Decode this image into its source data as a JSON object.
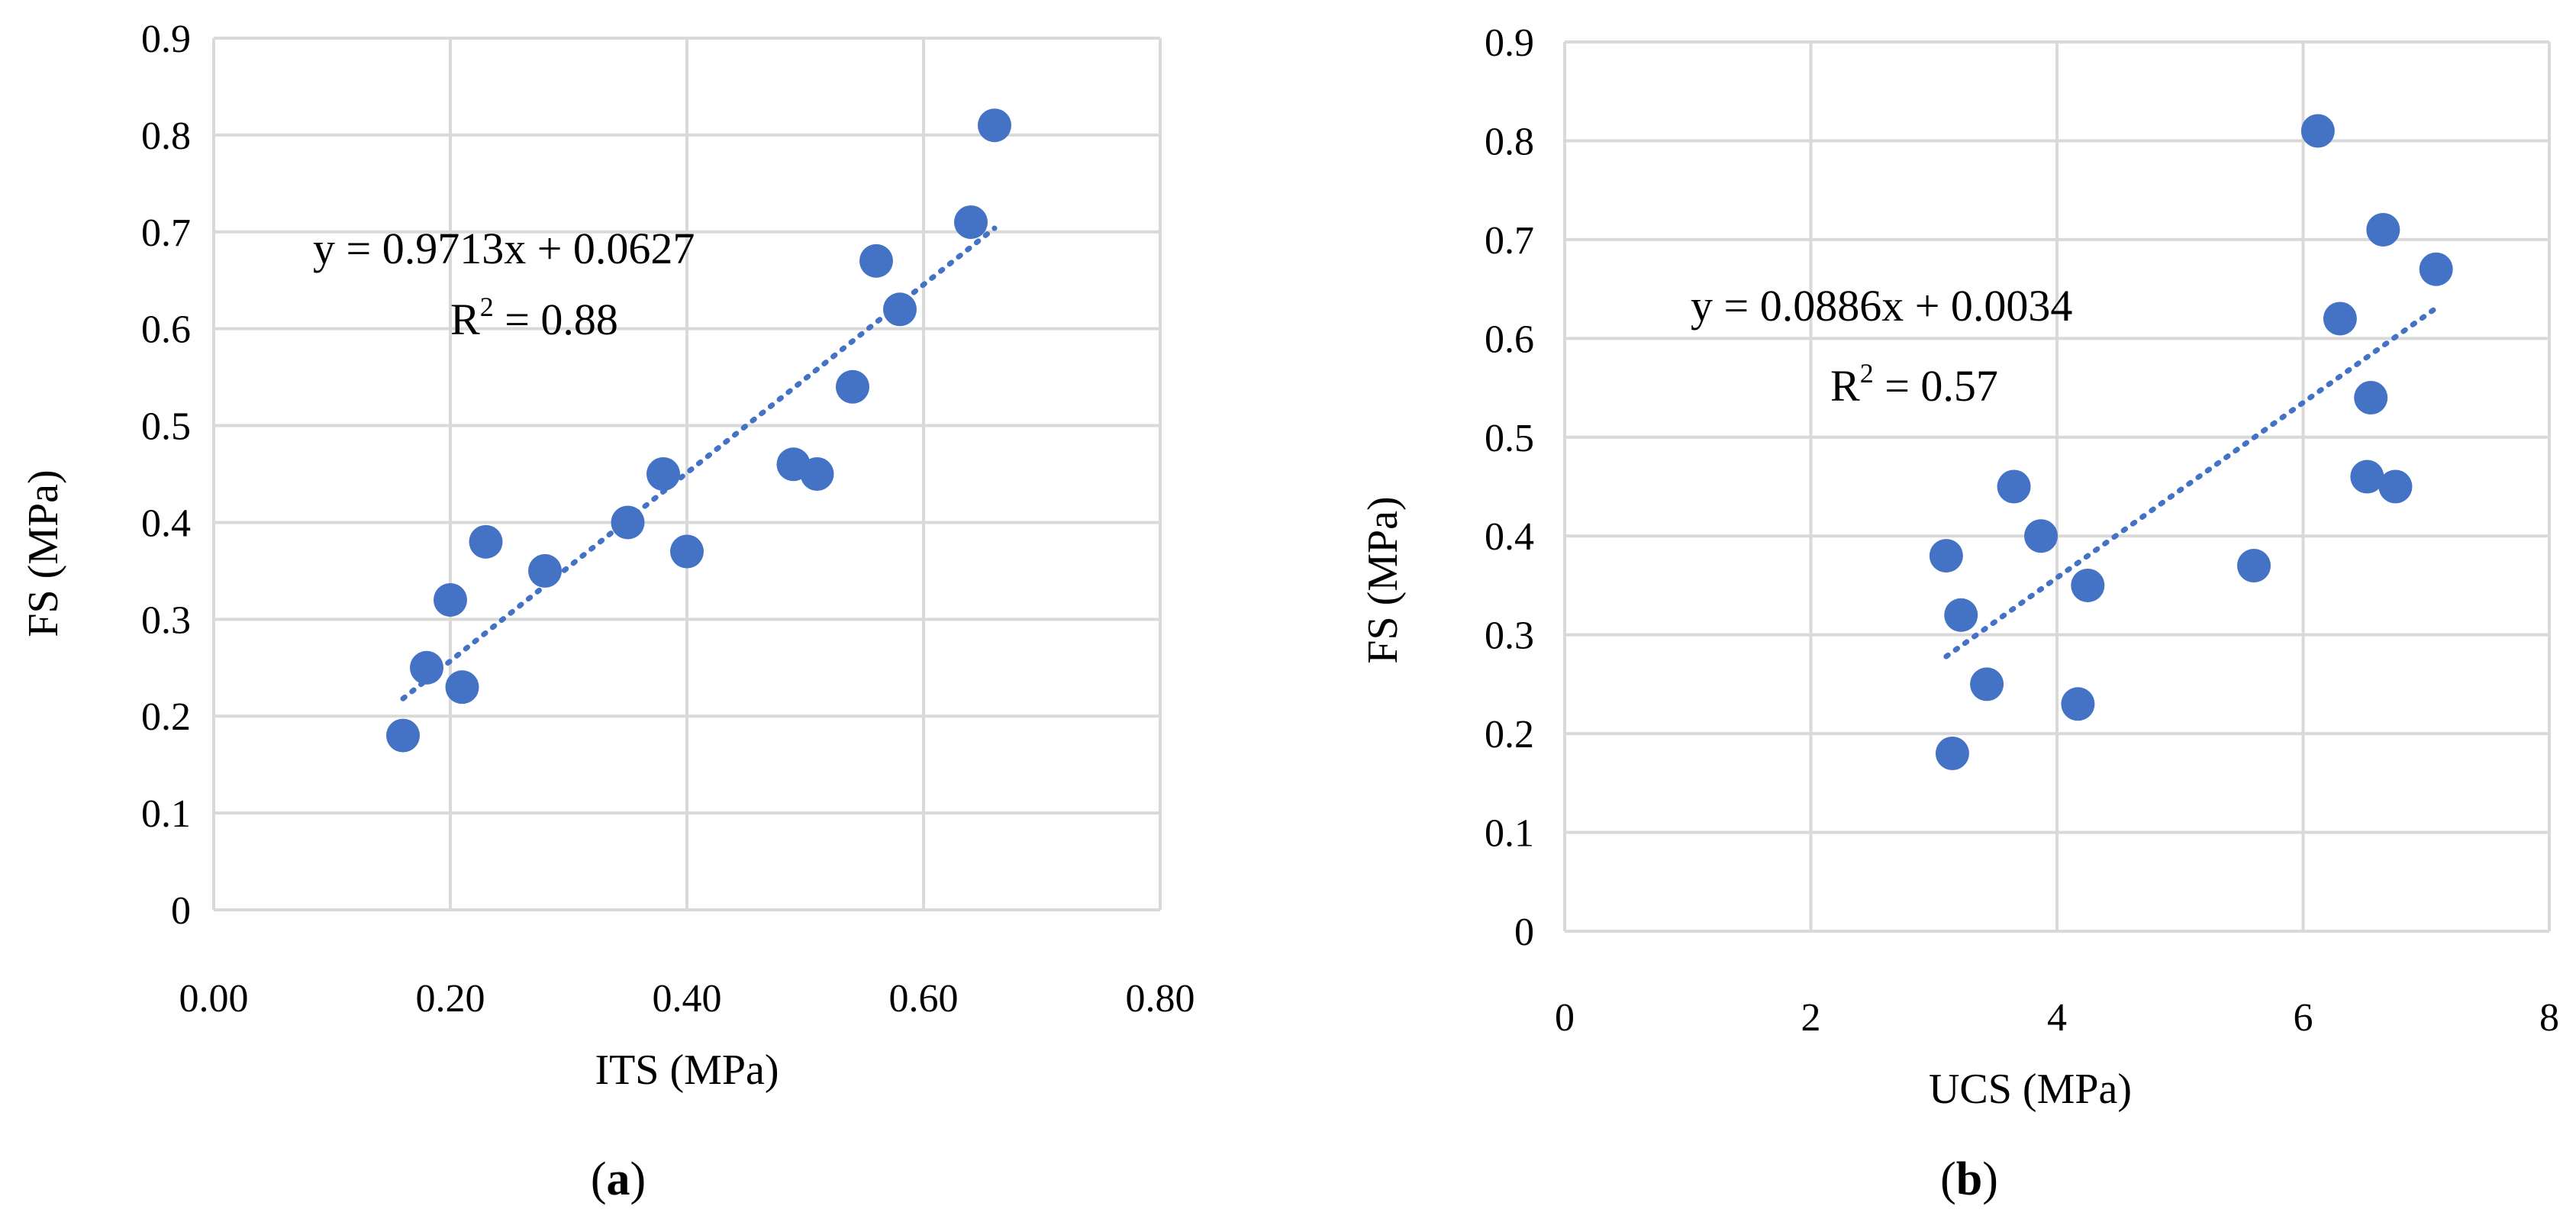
{
  "chart_data": [
    {
      "type": "scatter",
      "panel": "a",
      "xlabel": "ITS (MPa)",
      "ylabel": "FS (MPa)",
      "xlim": [
        0,
        0.8
      ],
      "ylim": [
        0,
        0.9
      ],
      "x_ticks": [
        "0.00",
        "0.20",
        "0.40",
        "0.60",
        "0.80"
      ],
      "y_ticks": [
        "0",
        "0.1",
        "0.2",
        "0.3",
        "0.4",
        "0.5",
        "0.6",
        "0.7",
        "0.8",
        "0.9"
      ],
      "grid": true,
      "color": "#4472c4",
      "points": [
        {
          "x": 0.16,
          "y": 0.18
        },
        {
          "x": 0.18,
          "y": 0.25
        },
        {
          "x": 0.2,
          "y": 0.32
        },
        {
          "x": 0.21,
          "y": 0.23
        },
        {
          "x": 0.23,
          "y": 0.38
        },
        {
          "x": 0.28,
          "y": 0.35
        },
        {
          "x": 0.35,
          "y": 0.4
        },
        {
          "x": 0.38,
          "y": 0.45
        },
        {
          "x": 0.4,
          "y": 0.37
        },
        {
          "x": 0.49,
          "y": 0.46
        },
        {
          "x": 0.51,
          "y": 0.45
        },
        {
          "x": 0.54,
          "y": 0.54
        },
        {
          "x": 0.56,
          "y": 0.67
        },
        {
          "x": 0.58,
          "y": 0.62
        },
        {
          "x": 0.64,
          "y": 0.71
        },
        {
          "x": 0.66,
          "y": 0.81
        }
      ],
      "trendline": {
        "slope": 0.9713,
        "intercept": 0.0627,
        "x_range": [
          0.16,
          0.66
        ]
      },
      "equation": "y = 0.9713x + 0.0627",
      "r2_prefix": "R",
      "r2_sup": "2",
      "r2_value": " = 0.88",
      "caption": "a"
    },
    {
      "type": "scatter",
      "panel": "b",
      "xlabel": "UCS (MPa)",
      "ylabel": "FS (MPa)",
      "xlim": [
        0,
        8
      ],
      "ylim": [
        0,
        0.9
      ],
      "x_ticks": [
        "0",
        "2",
        "4",
        "6",
        "8"
      ],
      "y_ticks": [
        "0",
        "0.1",
        "0.2",
        "0.3",
        "0.4",
        "0.5",
        "0.6",
        "0.7",
        "0.8",
        "0.9"
      ],
      "grid": true,
      "color": "#4472c4",
      "points": [
        {
          "x": 3.1,
          "y": 0.38
        },
        {
          "x": 3.15,
          "y": 0.18
        },
        {
          "x": 3.22,
          "y": 0.32
        },
        {
          "x": 3.43,
          "y": 0.25
        },
        {
          "x": 3.65,
          "y": 0.45
        },
        {
          "x": 3.87,
          "y": 0.4
        },
        {
          "x": 4.17,
          "y": 0.23
        },
        {
          "x": 4.25,
          "y": 0.35
        },
        {
          "x": 5.6,
          "y": 0.37
        },
        {
          "x": 6.12,
          "y": 0.81
        },
        {
          "x": 6.3,
          "y": 0.62
        },
        {
          "x": 6.52,
          "y": 0.46
        },
        {
          "x": 6.55,
          "y": 0.54
        },
        {
          "x": 6.65,
          "y": 0.71
        },
        {
          "x": 6.75,
          "y": 0.45
        },
        {
          "x": 7.08,
          "y": 0.67
        }
      ],
      "trendline": {
        "slope": 0.0886,
        "intercept": 0.0034,
        "x_range": [
          3.1,
          7.08
        ]
      },
      "equation": "y = 0.0886x + 0.0034",
      "r2_prefix": "R",
      "r2_sup": "2",
      "r2_value": " = 0.57",
      "caption": "b"
    }
  ]
}
